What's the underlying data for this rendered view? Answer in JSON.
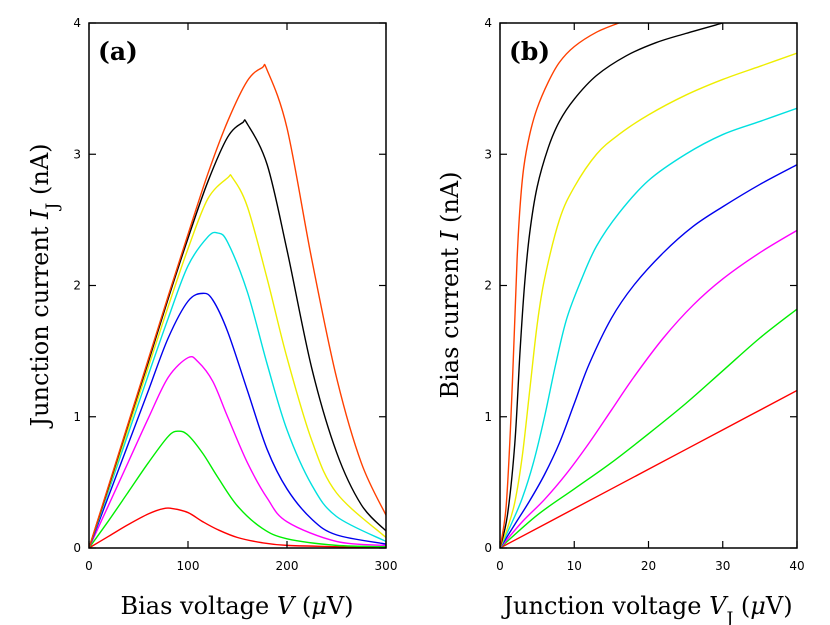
{
  "chart_data": [
    {
      "type": "line",
      "panel_label": "(a)",
      "xlabel_parts": [
        "Bias voltage ",
        "V",
        " (",
        "μ",
        "V)"
      ],
      "ylabel_parts": [
        "Junction current ",
        "I",
        "J",
        " (nA)"
      ],
      "xlim": [
        0,
        300
      ],
      "ylim": [
        0,
        4
      ],
      "xticks": [
        0,
        100,
        200,
        300
      ],
      "yticks": [
        0,
        1,
        2,
        3,
        4
      ],
      "series": [
        {
          "color": "#ff0000",
          "x": [
            0,
            20,
            40,
            60,
            75,
            85,
            100,
            115,
            130,
            150,
            175,
            200,
            250,
            300
          ],
          "y": [
            0,
            0.09,
            0.18,
            0.26,
            0.3,
            0.3,
            0.27,
            0.2,
            0.14,
            0.08,
            0.04,
            0.02,
            0.01,
            0.0
          ]
        },
        {
          "color": "#00ee00",
          "x": [
            0,
            20,
            40,
            60,
            80,
            90,
            100,
            115,
            130,
            150,
            175,
            200,
            250,
            300
          ],
          "y": [
            0,
            0.21,
            0.43,
            0.65,
            0.85,
            0.89,
            0.86,
            0.72,
            0.54,
            0.32,
            0.15,
            0.07,
            0.02,
            0.01
          ]
        },
        {
          "color": "#ff00ff",
          "x": [
            0,
            20,
            40,
            60,
            80,
            100,
            110,
            125,
            140,
            160,
            180,
            200,
            250,
            300
          ],
          "y": [
            0,
            0.33,
            0.66,
            0.99,
            1.3,
            1.45,
            1.42,
            1.27,
            1.0,
            0.65,
            0.38,
            0.2,
            0.05,
            0.02
          ]
        },
        {
          "color": "#0000ee",
          "x": [
            0,
            20,
            40,
            60,
            80,
            100,
            115,
            125,
            140,
            160,
            180,
            200,
            225,
            250,
            300
          ],
          "y": [
            0,
            0.4,
            0.8,
            1.2,
            1.6,
            1.88,
            1.94,
            1.89,
            1.65,
            1.2,
            0.75,
            0.45,
            0.22,
            0.1,
            0.03
          ]
        },
        {
          "color": "#00e0e0",
          "x": [
            0,
            20,
            40,
            60,
            80,
            100,
            120,
            130,
            140,
            160,
            180,
            200,
            225,
            250,
            300
          ],
          "y": [
            0,
            0.44,
            0.88,
            1.32,
            1.75,
            2.15,
            2.37,
            2.4,
            2.33,
            1.95,
            1.4,
            0.9,
            0.48,
            0.24,
            0.05
          ]
        },
        {
          "color": "#eeee00",
          "x": [
            0,
            20,
            40,
            60,
            80,
            100,
            120,
            140,
            145,
            160,
            180,
            200,
            225,
            250,
            300
          ],
          "y": [
            0,
            0.46,
            0.92,
            1.38,
            1.84,
            2.28,
            2.66,
            2.82,
            2.82,
            2.6,
            2.05,
            1.45,
            0.82,
            0.42,
            0.08
          ]
        },
        {
          "color": "#000000",
          "x": [
            0,
            20,
            40,
            60,
            80,
            100,
            120,
            140,
            155,
            160,
            180,
            200,
            225,
            250,
            275,
            300
          ],
          "y": [
            0,
            0.47,
            0.95,
            1.42,
            1.9,
            2.36,
            2.79,
            3.13,
            3.24,
            3.23,
            2.92,
            2.27,
            1.37,
            0.73,
            0.33,
            0.13
          ]
        },
        {
          "color": "#ff4000",
          "x": [
            0,
            20,
            40,
            60,
            80,
            100,
            120,
            140,
            160,
            175,
            180,
            200,
            225,
            250,
            275,
            300
          ],
          "y": [
            0,
            0.48,
            0.96,
            1.44,
            1.92,
            2.39,
            2.85,
            3.25,
            3.56,
            3.66,
            3.64,
            3.2,
            2.2,
            1.3,
            0.65,
            0.25
          ]
        }
      ]
    },
    {
      "type": "line",
      "panel_label": "(b)",
      "xlabel_parts": [
        "Junction voltage ",
        "V",
        "J",
        " (",
        "μ",
        "V)"
      ],
      "ylabel_parts": [
        "Bias current ",
        "I",
        " (nA)"
      ],
      "xlim": [
        0,
        40
      ],
      "ylim": [
        0,
        4
      ],
      "xticks": [
        0,
        10,
        20,
        30,
        40
      ],
      "yticks": [
        0,
        1,
        2,
        3,
        4
      ],
      "series": [
        {
          "color": "#ff0000",
          "x": [
            0,
            10,
            20,
            30,
            40
          ],
          "y": [
            0,
            0.3,
            0.6,
            0.9,
            1.2
          ]
        },
        {
          "color": "#00ee00",
          "x": [
            0,
            5,
            10,
            15,
            20,
            25,
            30,
            35,
            40
          ],
          "y": [
            0,
            0.25,
            0.45,
            0.65,
            0.87,
            1.1,
            1.35,
            1.6,
            1.82
          ]
        },
        {
          "color": "#ff00ff",
          "x": [
            0,
            3,
            6,
            9,
            12,
            15,
            18,
            22,
            26,
            30,
            35,
            40
          ],
          "y": [
            0,
            0.2,
            0.37,
            0.57,
            0.8,
            1.05,
            1.3,
            1.6,
            1.85,
            2.05,
            2.25,
            2.42
          ]
        },
        {
          "color": "#0000ee",
          "x": [
            0,
            2,
            4,
            6,
            8,
            10,
            12,
            15,
            18,
            22,
            26,
            30,
            35,
            40
          ],
          "y": [
            0,
            0.18,
            0.36,
            0.56,
            0.8,
            1.1,
            1.4,
            1.75,
            2.0,
            2.25,
            2.45,
            2.6,
            2.77,
            2.92
          ]
        },
        {
          "color": "#00e0e0",
          "x": [
            0,
            1.5,
            3,
            4.5,
            6,
            7.5,
            9,
            11,
            13,
            16,
            20,
            25,
            30,
            35,
            40
          ],
          "y": [
            0,
            0.18,
            0.38,
            0.65,
            1.0,
            1.4,
            1.75,
            2.05,
            2.3,
            2.55,
            2.8,
            3.0,
            3.15,
            3.25,
            3.35
          ]
        },
        {
          "color": "#eeee00",
          "x": [
            0,
            1,
            2,
            3,
            4,
            5,
            6,
            8,
            10,
            13,
            16,
            20,
            25,
            30,
            35,
            40
          ],
          "y": [
            0,
            0.15,
            0.35,
            0.7,
            1.2,
            1.7,
            2.05,
            2.5,
            2.75,
            3.0,
            3.15,
            3.3,
            3.45,
            3.57,
            3.67,
            3.77
          ]
        },
        {
          "color": "#000000",
          "x": [
            0,
            1,
            2,
            2.7,
            3.3,
            4,
            5,
            6.5,
            8,
            10,
            13,
            17,
            21,
            25,
            30
          ],
          "y": [
            0,
            0.25,
            0.8,
            1.5,
            2.0,
            2.4,
            2.75,
            3.05,
            3.25,
            3.42,
            3.6,
            3.75,
            3.85,
            3.92,
            4.0
          ]
        },
        {
          "color": "#ff4000",
          "x": [
            0,
            0.8,
            1.4,
            1.9,
            2.3,
            2.7,
            3.2,
            4,
            5,
            6.5,
            8,
            10,
            13,
            16
          ],
          "y": [
            0,
            0.3,
            0.9,
            1.6,
            2.2,
            2.6,
            2.9,
            3.15,
            3.35,
            3.55,
            3.7,
            3.82,
            3.93,
            4.0
          ]
        }
      ]
    }
  ]
}
